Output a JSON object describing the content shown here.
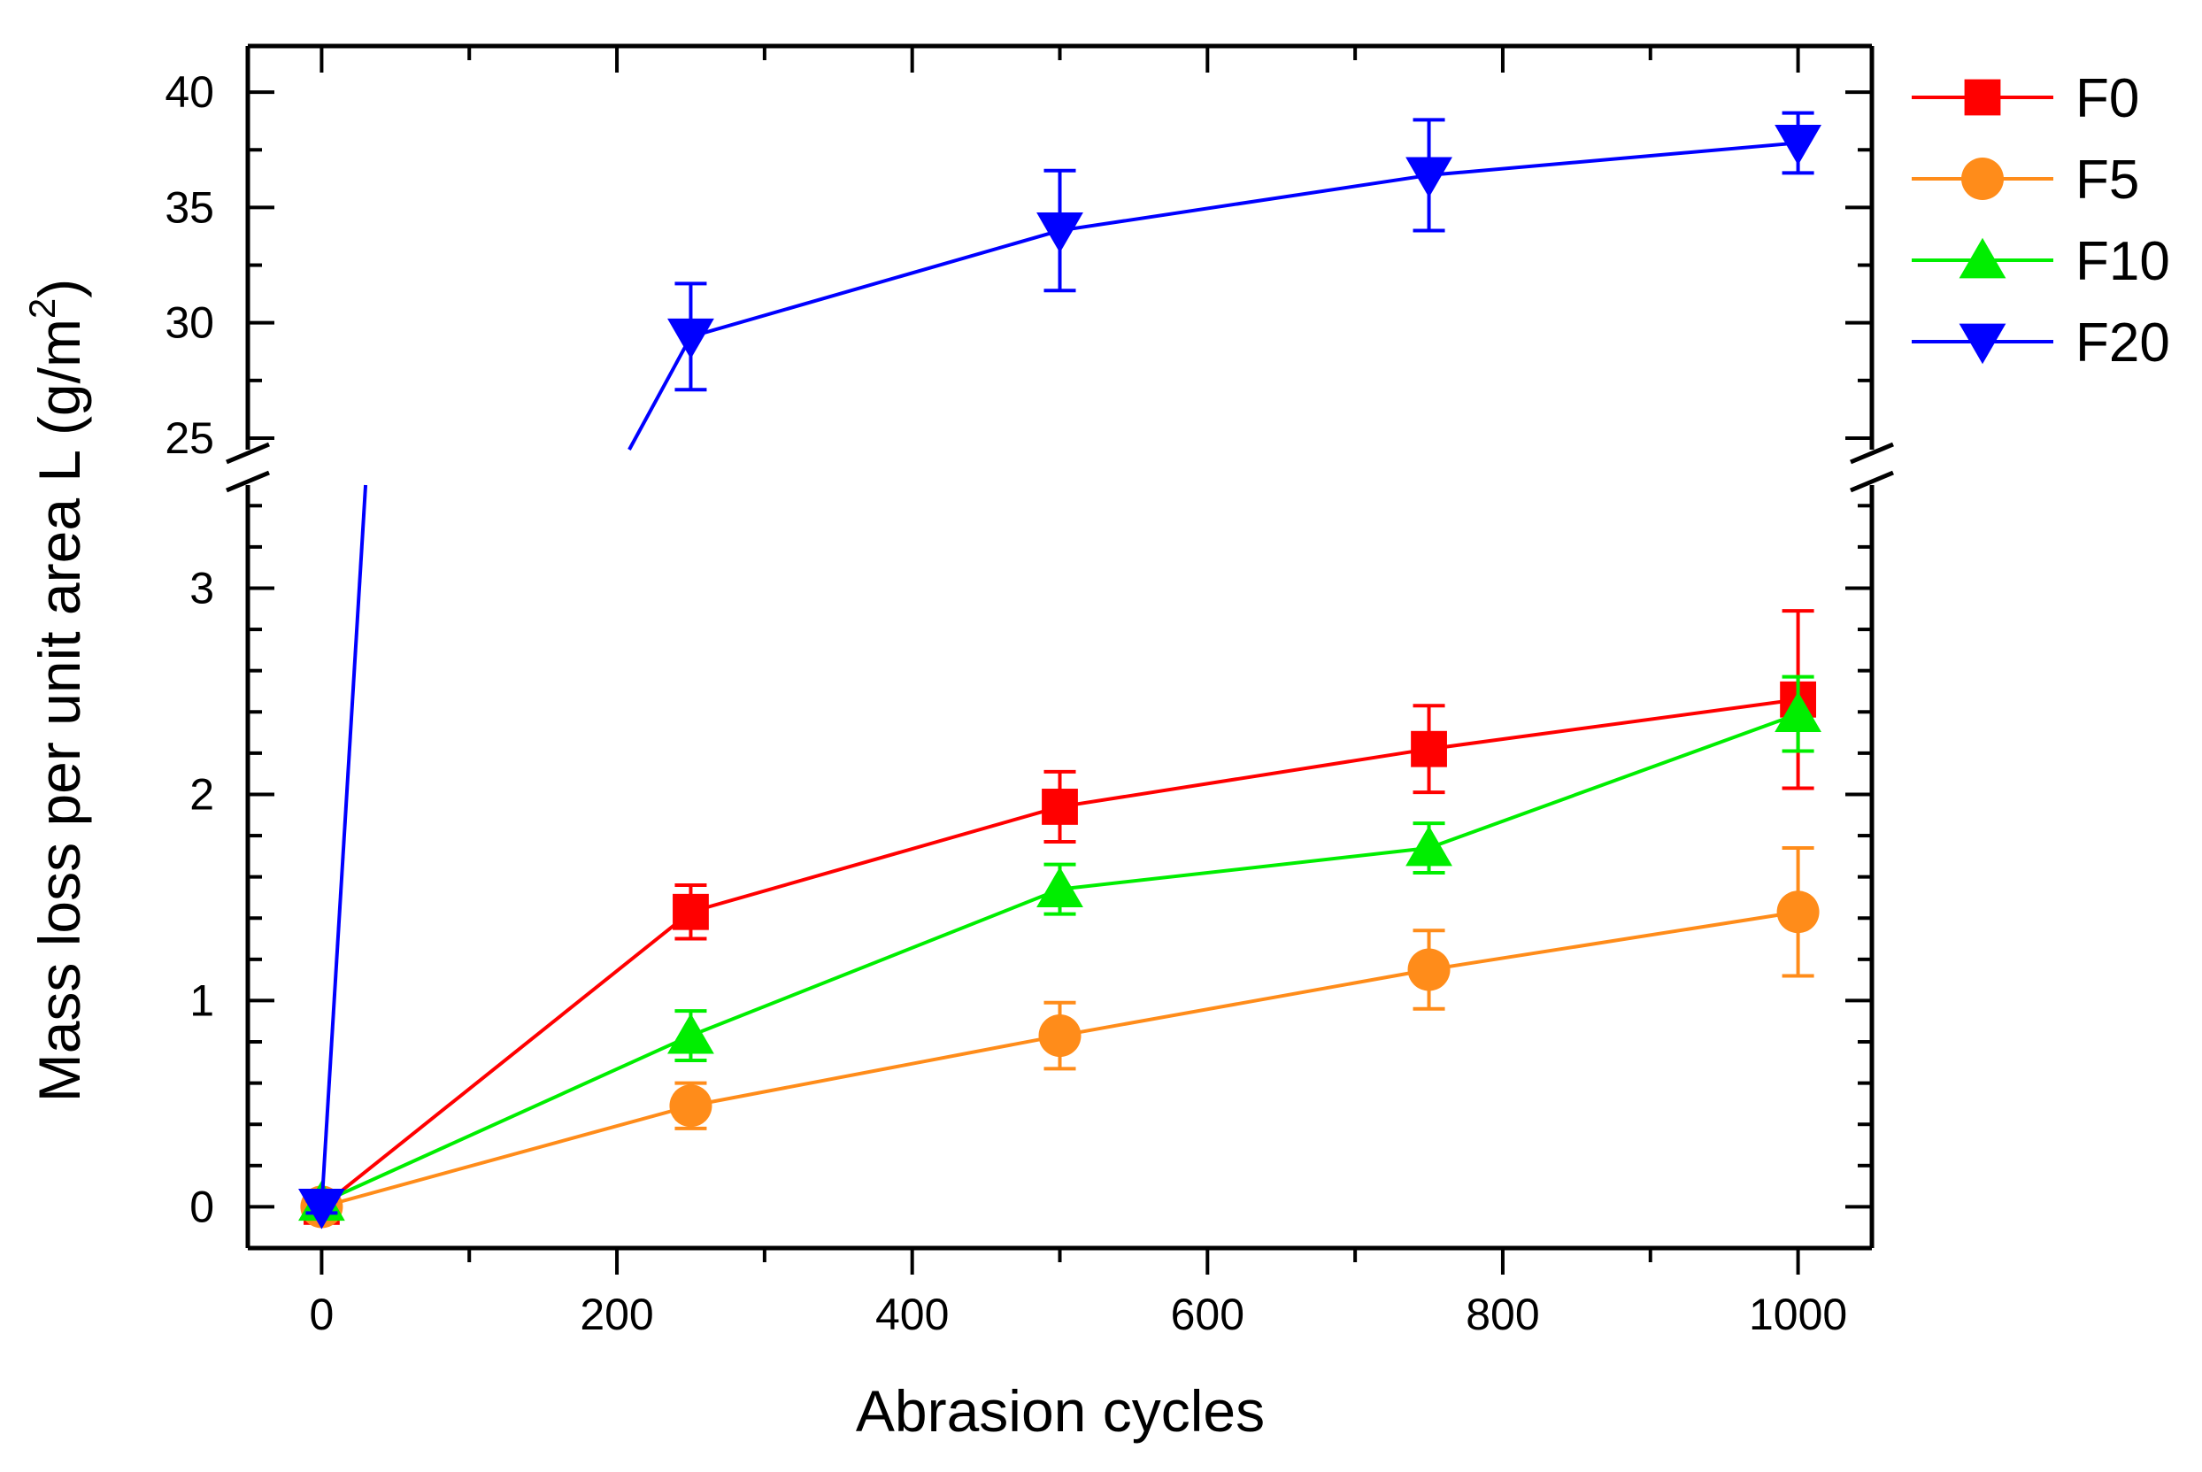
{
  "chart_data": {
    "type": "line",
    "title": "",
    "xlabel": "Abrasion cycles",
    "ylabel_main": "Mass loss per unit area L (g/m",
    "ylabel_sup": "2",
    "ylabel_close": ")",
    "xlim": [
      -50,
      1050
    ],
    "x_ticks": [
      0,
      200,
      400,
      600,
      800,
      1000
    ],
    "y_lower_range": [
      -0.2,
      3.5
    ],
    "y_upper_range": [
      24.5,
      42
    ],
    "y_lower_ticks": [
      0,
      1,
      2,
      3
    ],
    "y_upper_ticks": [
      25,
      30,
      35,
      40
    ],
    "x": [
      0,
      250,
      500,
      750,
      1000
    ],
    "series": [
      {
        "name": "F0",
        "color": "#ff0000",
        "marker": "square",
        "values": [
          0,
          1.43,
          1.94,
          2.22,
          2.46
        ],
        "errors": [
          0.04,
          0.13,
          0.17,
          0.21,
          0.43
        ]
      },
      {
        "name": "F5",
        "color": "#ff8c1a",
        "marker": "circle",
        "values": [
          0,
          0.49,
          0.83,
          1.15,
          1.43
        ],
        "errors": [
          0.04,
          0.11,
          0.16,
          0.19,
          0.31
        ]
      },
      {
        "name": "F10",
        "color": "#00ee00",
        "marker": "triangle-up",
        "values": [
          0.02,
          0.83,
          1.54,
          1.74,
          2.39
        ],
        "errors": [
          0.04,
          0.12,
          0.12,
          0.12,
          0.18
        ]
      },
      {
        "name": "F20",
        "color": "#0000ff",
        "marker": "triangle-down",
        "values": [
          0,
          29.4,
          34.0,
          36.4,
          37.8
        ],
        "errors": [
          0.03,
          2.3,
          2.6,
          2.4,
          1.3
        ]
      }
    ]
  }
}
